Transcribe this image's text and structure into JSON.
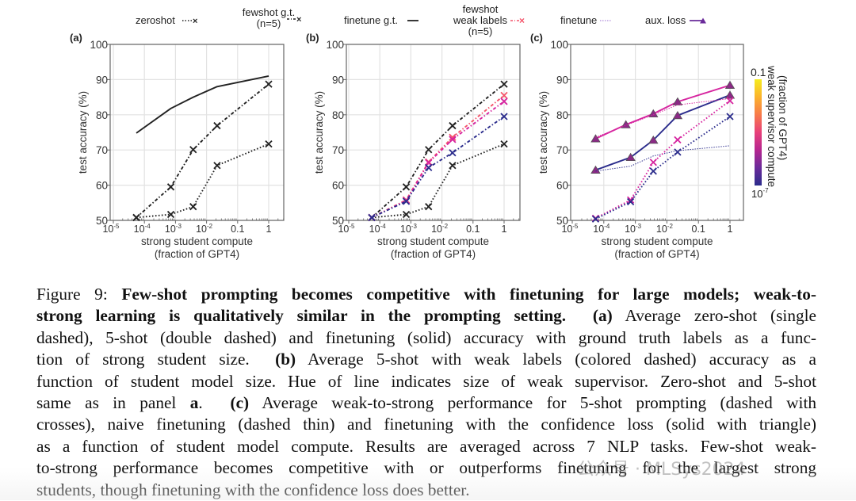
{
  "legend": {
    "zeroshot": "zeroshot",
    "fewshot_gt_line1": "fewshot g.t.",
    "fewshot_gt_line2": "(n=5)",
    "finetune_gt": "finetune g.t.",
    "fewshot_weak_line1": "fewshot",
    "fewshot_weak_line2": "weak labels",
    "fewshot_weak_line3": "(n=5)",
    "finetune": "finetune",
    "aux_loss": "aux. loss"
  },
  "colors": {
    "black": "#222222",
    "pink": "#d6249f",
    "salmon": "#f4546a",
    "navy": "#2b2c8c",
    "purple_marker": "#8b2a86",
    "grid": "#e2e2e2",
    "axis": "#666666"
  },
  "colorbar": {
    "label_line1": "weak supervisor compute",
    "label_line2": "(fraction of GPT4)",
    "top_tick": "0.1",
    "bottom_tick": "10",
    "bottom_tick_exp": "-7",
    "stops": [
      "#2b2c8c",
      "#6a2b9a",
      "#b5268f",
      "#e8407a",
      "#f77a4a",
      "#fbb22c",
      "#f5ec1f"
    ]
  },
  "chart_data": [
    {
      "panel": "(a)",
      "type": "line",
      "xscale": "log",
      "xlabel_line1": "strong student compute",
      "xlabel_line2": "(fraction of GPT4)",
      "ylabel": "test accuracy (%)",
      "ylim": [
        50,
        100
      ],
      "xlim_log10": [
        -5.1,
        0.5
      ],
      "yticks": [
        "50",
        "60",
        "70",
        "80",
        "90",
        "100"
      ],
      "xticks": [
        {
          "base": "10",
          "exp": "-5",
          "log": -5
        },
        {
          "base": "10",
          "exp": "-4",
          "log": -4
        },
        {
          "base": "10",
          "exp": "-3",
          "log": -3
        },
        {
          "base": "10",
          "exp": "-2",
          "log": -2
        },
        {
          "base": "0.1",
          "exp": "",
          "log": -1
        },
        {
          "base": "1",
          "exp": "",
          "log": 0
        }
      ],
      "grid": true,
      "series": [
        {
          "name": "finetune g.t.",
          "style": "solid",
          "color": "#222222",
          "marker": "none",
          "x_log10": [
            -4.26,
            -3.15,
            -2.43,
            -1.66,
            0
          ],
          "y": [
            74.8,
            81.8,
            85.0,
            88.0,
            91.0
          ]
        },
        {
          "name": "fewshot g.t. (n=5)",
          "style": "dashdot",
          "color": "#222222",
          "marker": "x",
          "x_log10": [
            -4.26,
            -3.15,
            -2.43,
            -1.66,
            0
          ],
          "y": [
            50.8,
            59.5,
            70.1,
            76.9,
            88.7
          ]
        },
        {
          "name": "zeroshot",
          "style": "dotted",
          "color": "#222222",
          "marker": "x",
          "x_log10": [
            -4.26,
            -3.15,
            -2.43,
            -1.66,
            0
          ],
          "y": [
            50.8,
            51.7,
            53.9,
            65.6,
            71.7
          ]
        }
      ]
    },
    {
      "panel": "(b)",
      "type": "line",
      "xscale": "log",
      "xlabel_line1": "strong student compute",
      "xlabel_line2": "(fraction of GPT4)",
      "ylabel": "test accuracy (%)",
      "ylim": [
        50,
        100
      ],
      "xlim_log10": [
        -5.1,
        0.5
      ],
      "yticks": [
        "50",
        "60",
        "70",
        "80",
        "90",
        "100"
      ],
      "xticks": [
        {
          "base": "10",
          "exp": "-5",
          "log": -5
        },
        {
          "base": "10",
          "exp": "-4",
          "log": -4
        },
        {
          "base": "10",
          "exp": "-3",
          "log": -3
        },
        {
          "base": "10",
          "exp": "-2",
          "log": -2
        },
        {
          "base": "0.1",
          "exp": "",
          "log": -1
        },
        {
          "base": "1",
          "exp": "",
          "log": 0
        }
      ],
      "grid": true,
      "series": [
        {
          "name": "fewshot g.t. (n=5)",
          "style": "dashdot",
          "color": "#222222",
          "marker": "x",
          "x_log10": [
            -4.26,
            -3.15,
            -2.43,
            -1.66,
            0
          ],
          "y": [
            50.8,
            59.5,
            70.1,
            76.9,
            88.7
          ]
        },
        {
          "name": "zeroshot",
          "style": "dotted",
          "color": "#222222",
          "marker": "x",
          "x_log10": [
            -4.26,
            -3.15,
            -2.43,
            -1.66,
            0
          ],
          "y": [
            50.8,
            51.7,
            53.9,
            65.6,
            71.7
          ]
        },
        {
          "name": "fewshot weak labels (largest supervisor)",
          "style": "dashdot",
          "color": "#f4546a",
          "marker": "x",
          "x_log10": [
            -4.26,
            -3.15,
            -2.43,
            -1.66,
            0
          ],
          "y": [
            50.8,
            55.8,
            66.6,
            73.6,
            85.5
          ]
        },
        {
          "name": "fewshot weak labels (mid supervisor)",
          "style": "dashdot",
          "color": "#d6249f",
          "marker": "x",
          "x_log10": [
            -4.26,
            -3.15,
            -2.43,
            -1.66,
            0
          ],
          "y": [
            50.8,
            55.6,
            66.4,
            73.0,
            83.8
          ]
        },
        {
          "name": "fewshot weak labels (smallest supervisor)",
          "style": "dashdot",
          "color": "#2b2c8c",
          "marker": "x",
          "x_log10": [
            -4.26,
            -3.15,
            -2.43,
            -1.66,
            0
          ],
          "y": [
            50.8,
            55.4,
            65.0,
            69.2,
            79.5
          ]
        }
      ]
    },
    {
      "panel": "(c)",
      "type": "line",
      "xscale": "log",
      "xlabel_line1": "strong student compute",
      "xlabel_line2": "(fraction of GPT4)",
      "ylabel": "test accuracy (%)",
      "ylim": [
        50,
        100
      ],
      "xlim_log10": [
        -5.1,
        0.5
      ],
      "yticks": [
        "50",
        "60",
        "70",
        "80",
        "90",
        "100"
      ],
      "xticks": [
        {
          "base": "10",
          "exp": "-5",
          "log": -5
        },
        {
          "base": "10",
          "exp": "-4",
          "log": -4
        },
        {
          "base": "10",
          "exp": "-3",
          "log": -3
        },
        {
          "base": "10",
          "exp": "-2",
          "log": -2
        },
        {
          "base": "0.1",
          "exp": "",
          "log": -1
        },
        {
          "base": "1",
          "exp": "",
          "log": 0
        }
      ],
      "grid": true,
      "legend_position": "right (colorbar)",
      "series": [
        {
          "name": "aux. loss (pink supervisor)",
          "style": "solid",
          "color": "#d6249f",
          "marker": "triangle",
          "x_log10": [
            -4.26,
            -3.3,
            -2.43,
            -1.66,
            0
          ],
          "y": [
            73.2,
            77.2,
            80.3,
            83.7,
            88.4
          ]
        },
        {
          "name": "aux. loss (navy supervisor)",
          "style": "solid",
          "color": "#2b2c8c",
          "marker": "triangle",
          "x_log10": [
            -4.26,
            -3.15,
            -2.43,
            -1.66,
            0
          ],
          "y": [
            64.3,
            67.9,
            72.8,
            79.8,
            85.6
          ]
        },
        {
          "name": "finetune (pink supervisor)",
          "style": "thin-dotted",
          "color": "#d6249f",
          "marker": "none",
          "x_log10": [
            -4.26,
            -3.3,
            -2.43,
            -1.66,
            0
          ],
          "y": [
            73.6,
            77.0,
            80.0,
            82.8,
            84.6
          ]
        },
        {
          "name": "finetune (navy supervisor)",
          "style": "thin-dotted",
          "color": "#2b2c8c",
          "marker": "none",
          "x_log10": [
            -4.26,
            -3.15,
            -2.43,
            -1.66,
            0
          ],
          "y": [
            64.0,
            65.4,
            68.3,
            69.8,
            71.2
          ]
        },
        {
          "name": "fewshot weak labels (pink supervisor)",
          "style": "dotted",
          "color": "#d6249f",
          "marker": "x",
          "x_log10": [
            -4.26,
            -3.15,
            -2.43,
            -1.66,
            0
          ],
          "y": [
            50.6,
            55.8,
            66.5,
            72.9,
            84.0
          ]
        },
        {
          "name": "fewshot weak labels (navy supervisor)",
          "style": "dotted",
          "color": "#2b2c8c",
          "marker": "x",
          "x_log10": [
            -4.26,
            -3.15,
            -2.43,
            -1.66,
            0
          ],
          "y": [
            50.4,
            55.3,
            64.0,
            69.4,
            79.5
          ]
        }
      ]
    }
  ],
  "caption": {
    "figure_label": "Figure 9:",
    "bold_title_l1": "Few-shot prompting becomes competitive with finetuning for large models; weak-to-",
    "bold_title_l2": "strong learning is qualitatively similar in the prompting setting.",
    "l2_a": "(a)",
    "l2_rest": "Average zero-shot (single",
    "l3": "dashed), 5-shot (double dashed) and finetuning (solid) accuracy with ground truth labels as a func-",
    "l4_pre": "tion of strong student size.",
    "l4_b": "(b)",
    "l4_rest": "Average 5-shot with weak labels (colored dashed) accuracy as a",
    "l5": "function of student model size. Hue of line indicates size of weak supervisor. Zero-shot and 5-shot",
    "l6_pre": "same as in panel",
    "l6_a": "a",
    "l6_dot": ".",
    "l6_c": "(c)",
    "l6_rest": "Average weak-to-strong performance for 5-shot prompting (dashed with",
    "l7": "crosses), naive finetuning (dashed thin) and finetuning with the confidence loss (solid with triangle)",
    "l8": "as a function of student model compute. Results are averaged across 7 NLP tasks. Few-shot weak-",
    "l9": "to-strong performance becomes competitive with or outperforms finetuning for the largest strong",
    "l10": "students, though finetuning with the confidence loss does better."
  },
  "watermark": "公众号 · MLSys2024"
}
